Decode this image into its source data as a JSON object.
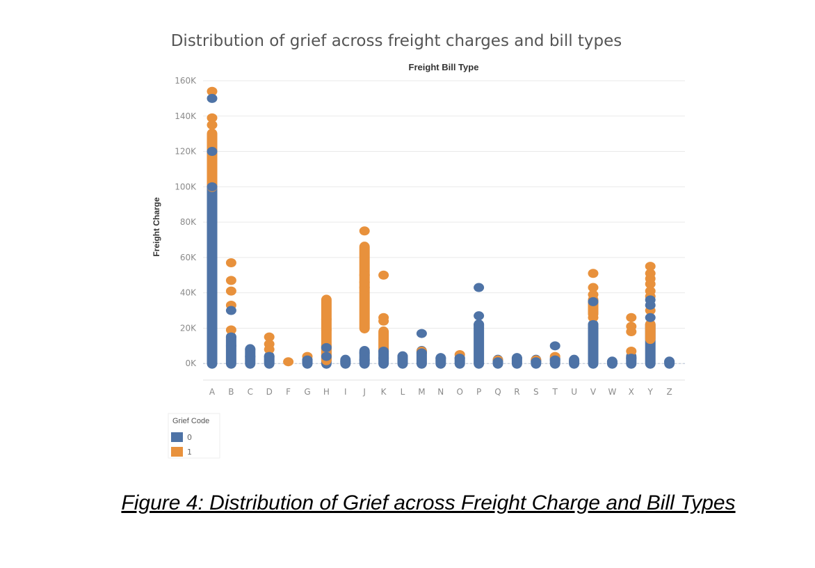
{
  "colors": {
    "grief_0": "#4e73a6",
    "grief_1": "#e8913c",
    "grid": "#e9e9e9",
    "axis_text": "#8a8a8a"
  },
  "legend": {
    "title": "Grief Code",
    "items": [
      "0",
      "1"
    ]
  },
  "caption": "Figure 4: Distribution of Grief across Freight Charge and Bill Types",
  "chart_data": {
    "type": "scatter",
    "title": "Distribution of grief across freight charges and bill types",
    "subtitle": "Freight Bill Type",
    "xlabel": "",
    "ylabel": "Freight Charge",
    "categories": [
      "A",
      "B",
      "C",
      "D",
      "F",
      "G",
      "H",
      "I",
      "J",
      "K",
      "L",
      "M",
      "N",
      "O",
      "P",
      "Q",
      "R",
      "S",
      "T",
      "U",
      "V",
      "W",
      "X",
      "Y",
      "Z"
    ],
    "ylim": [
      -7000,
      160000
    ],
    "yticks": [
      0,
      20000,
      40000,
      60000,
      80000,
      100000,
      120000,
      140000,
      160000
    ],
    "ytick_labels": [
      "0K",
      "20K",
      "40K",
      "60K",
      "80K",
      "100K",
      "120K",
      "140K",
      "160K"
    ],
    "grid": true,
    "legend_position": "bottom-left",
    "series": [
      {
        "name": "0",
        "ranges": [
          [
            0,
            100000
          ],
          [
            0,
            15000
          ],
          [
            0,
            8000
          ],
          [
            0,
            4000
          ],
          [
            0,
            2000
          ],
          [
            0,
            10000
          ],
          [
            0,
            2000
          ],
          [
            0,
            7000
          ],
          [
            0,
            7000
          ],
          [
            0,
            4000
          ],
          [
            0,
            7000
          ],
          [
            0,
            3000
          ],
          [
            0,
            3000
          ],
          [
            0,
            22000
          ],
          [
            0,
            2000
          ],
          [
            0,
            3000
          ],
          [
            0,
            2000
          ],
          [
            0,
            3000
          ],
          [
            0,
            2000
          ],
          [
            0,
            22000
          ],
          [
            0,
            1000
          ],
          [
            0,
            4000
          ],
          [
            0,
            22000
          ],
          [
            0,
            1000
          ]
        ],
        "ranges_category": [
          "A",
          "B",
          "C",
          "D",
          "G",
          "H",
          "I",
          "J",
          "K",
          "L",
          "M",
          "N",
          "O",
          "P",
          "Q",
          "R",
          "S",
          "T",
          "U",
          "V",
          "W",
          "X",
          "Y",
          "Z"
        ],
        "points": [
          {
            "x": "A",
            "y": 150000
          },
          {
            "x": "A",
            "y": 120000
          },
          {
            "x": "A",
            "y": 100000
          },
          {
            "x": "B",
            "y": 30000
          },
          {
            "x": "B",
            "y": 15000
          },
          {
            "x": "B",
            "y": 10000
          },
          {
            "x": "C",
            "y": 8000
          },
          {
            "x": "C",
            "y": 4000
          },
          {
            "x": "D",
            "y": 4000
          },
          {
            "x": "G",
            "y": 2000
          },
          {
            "x": "H",
            "y": 9000
          },
          {
            "x": "H",
            "y": 4000
          },
          {
            "x": "I",
            "y": 1000
          },
          {
            "x": "J",
            "y": 6000
          },
          {
            "x": "J",
            "y": 2000
          },
          {
            "x": "K",
            "y": 7000
          },
          {
            "x": "K",
            "y": 3000
          },
          {
            "x": "L",
            "y": 4000
          },
          {
            "x": "M",
            "y": 17000
          },
          {
            "x": "M",
            "y": 6000
          },
          {
            "x": "N",
            "y": 3000
          },
          {
            "x": "O",
            "y": 3000
          },
          {
            "x": "P",
            "y": 43000
          },
          {
            "x": "P",
            "y": 27000
          },
          {
            "x": "P",
            "y": 22000
          },
          {
            "x": "Q",
            "y": 1000
          },
          {
            "x": "R",
            "y": 3000
          },
          {
            "x": "S",
            "y": 1000
          },
          {
            "x": "T",
            "y": 10000
          },
          {
            "x": "T",
            "y": 2000
          },
          {
            "x": "U",
            "y": 1000
          },
          {
            "x": "V",
            "y": 35000
          },
          {
            "x": "V",
            "y": 22000
          },
          {
            "x": "W",
            "y": 1000
          },
          {
            "x": "X",
            "y": 3000
          },
          {
            "x": "Y",
            "y": 36000
          },
          {
            "x": "Y",
            "y": 33000
          },
          {
            "x": "Y",
            "y": 26000
          },
          {
            "x": "Z",
            "y": 1000
          }
        ]
      },
      {
        "name": "1",
        "ranges": [
          [
            100000,
            130000
          ],
          [
            2000,
            36000
          ],
          [
            20000,
            66000
          ],
          [
            8000,
            18000
          ],
          [
            28000,
            36000
          ],
          [
            14000,
            22000
          ]
        ],
        "ranges_category": [
          "A",
          "H",
          "J",
          "K",
          "V",
          "Y"
        ],
        "points": [
          {
            "x": "A",
            "y": 154000
          },
          {
            "x": "A",
            "y": 139000
          },
          {
            "x": "A",
            "y": 135000
          },
          {
            "x": "B",
            "y": 57000
          },
          {
            "x": "B",
            "y": 47000
          },
          {
            "x": "B",
            "y": 41000
          },
          {
            "x": "B",
            "y": 33000
          },
          {
            "x": "B",
            "y": 19000
          },
          {
            "x": "D",
            "y": 15000
          },
          {
            "x": "D",
            "y": 11000
          },
          {
            "x": "D",
            "y": 8000
          },
          {
            "x": "F",
            "y": 1000
          },
          {
            "x": "G",
            "y": 4000
          },
          {
            "x": "H",
            "y": 25000
          },
          {
            "x": "H",
            "y": 19000
          },
          {
            "x": "J",
            "y": 75000
          },
          {
            "x": "J",
            "y": 43000
          },
          {
            "x": "J",
            "y": 46000
          },
          {
            "x": "J",
            "y": 50000
          },
          {
            "x": "K",
            "y": 50000
          },
          {
            "x": "K",
            "y": 26000
          },
          {
            "x": "K",
            "y": 24000
          },
          {
            "x": "M",
            "y": 7000
          },
          {
            "x": "O",
            "y": 5000
          },
          {
            "x": "Q",
            "y": 2000
          },
          {
            "x": "S",
            "y": 2000
          },
          {
            "x": "T",
            "y": 4000
          },
          {
            "x": "V",
            "y": 51000
          },
          {
            "x": "V",
            "y": 43000
          },
          {
            "x": "V",
            "y": 39000
          },
          {
            "x": "V",
            "y": 26000
          },
          {
            "x": "X",
            "y": 26000
          },
          {
            "x": "X",
            "y": 21000
          },
          {
            "x": "X",
            "y": 18000
          },
          {
            "x": "X",
            "y": 7000
          },
          {
            "x": "Y",
            "y": 55000
          },
          {
            "x": "Y",
            "y": 51000
          },
          {
            "x": "Y",
            "y": 48000
          },
          {
            "x": "Y",
            "y": 45000
          },
          {
            "x": "Y",
            "y": 41000
          },
          {
            "x": "Y",
            "y": 38000
          },
          {
            "x": "Y",
            "y": 30000
          }
        ]
      }
    ]
  }
}
